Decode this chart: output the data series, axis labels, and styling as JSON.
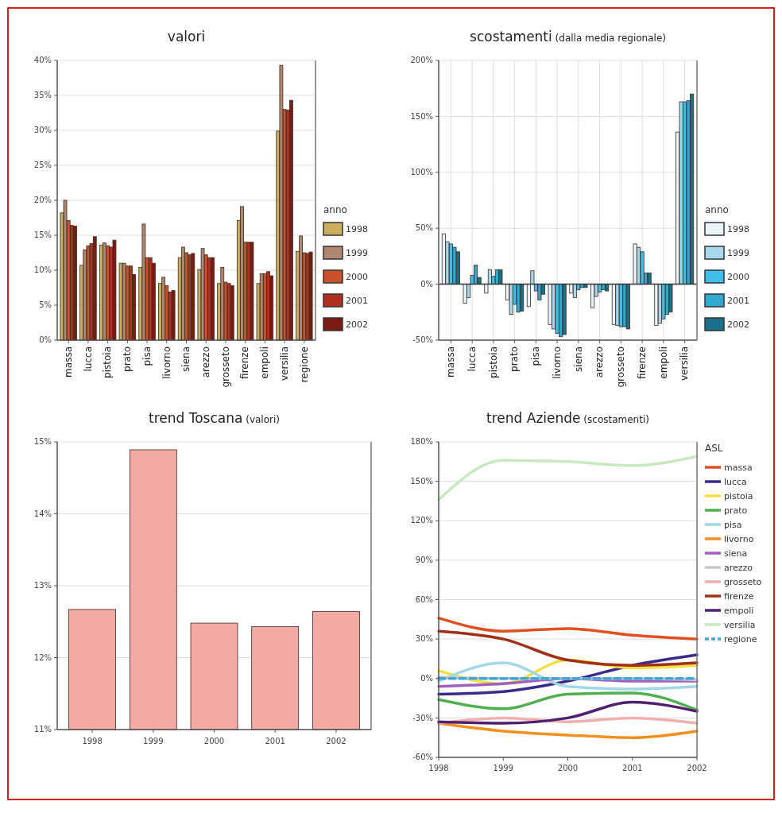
{
  "chart_data": [
    {
      "type": "bar",
      "title": "valori",
      "categories": [
        "massa",
        "lucca",
        "pistoia",
        "prato",
        "pisa",
        "livorno",
        "siena",
        "arezzo",
        "grosseto",
        "firenze",
        "empoli",
        "versilia",
        "regione"
      ],
      "series": [
        {
          "name": "1998",
          "color": "#c8b060",
          "values": [
            18.2,
            10.7,
            13.6,
            11.0,
            10.4,
            8.1,
            11.8,
            10.1,
            8.1,
            17.1,
            8.1,
            29.9,
            12.7
          ]
        },
        {
          "name": "1999",
          "color": "#b08870",
          "values": [
            20.0,
            12.9,
            13.9,
            11.0,
            16.6,
            9.0,
            13.3,
            13.1,
            10.4,
            19.1,
            9.5,
            39.3,
            14.9
          ]
        },
        {
          "name": "2000",
          "color": "#c8502a",
          "values": [
            17.1,
            13.5,
            13.5,
            10.6,
            11.8,
            7.8,
            12.5,
            12.2,
            8.3,
            14.0,
            9.5,
            33.0,
            12.5
          ]
        },
        {
          "name": "2001",
          "color": "#b03020",
          "values": [
            16.4,
            13.8,
            13.3,
            10.6,
            11.8,
            6.9,
            12.2,
            11.8,
            8.1,
            14.0,
            9.8,
            32.9,
            12.4
          ]
        },
        {
          "name": "2002",
          "color": "#7a1c12",
          "values": [
            16.3,
            14.8,
            14.3,
            9.4,
            11.0,
            7.1,
            12.4,
            11.8,
            7.8,
            14.0,
            9.2,
            34.3,
            12.6
          ]
        }
      ],
      "ylim": [
        0,
        40
      ],
      "yticks": [
        {
          "value": 0,
          "label": "0%"
        },
        {
          "value": 5,
          "label": "5%"
        },
        {
          "value": 10,
          "label": "10%"
        },
        {
          "value": 15,
          "label": "15%"
        },
        {
          "value": 20,
          "label": "20%"
        },
        {
          "value": 25,
          "label": "25%"
        },
        {
          "value": 30,
          "label": "30%"
        },
        {
          "value": 35,
          "label": "35%"
        },
        {
          "value": 40,
          "label": "40%"
        }
      ],
      "grid": "y",
      "legend": "bottom right",
      "legend_title": "anno"
    },
    {
      "type": "bar",
      "title": "scostamenti",
      "subtitle": "(dalla media regionale)",
      "categories": [
        "massa",
        "lucca",
        "pistoia",
        "prato",
        "pisa",
        "livorno",
        "siena",
        "arezzo",
        "grosseto",
        "firenze",
        "empoli",
        "versilia"
      ],
      "series": [
        {
          "name": "1998",
          "color": "#e8f4fa",
          "values": [
            45,
            -17,
            -8,
            -14,
            -20,
            -36,
            -8,
            -21,
            -36,
            36,
            -37,
            136
          ]
        },
        {
          "name": "1999",
          "color": "#a8d8ec",
          "values": [
            38,
            -12,
            13,
            -27,
            12,
            -40,
            -12,
            -11,
            -37,
            33,
            -35,
            163
          ]
        },
        {
          "name": "2000",
          "color": "#40c0e8",
          "values": [
            36,
            8,
            7,
            -18,
            -6,
            -44,
            -5,
            -7,
            -38,
            29,
            -31,
            163
          ]
        },
        {
          "name": "2001",
          "color": "#30a8d0",
          "values": [
            33,
            17,
            13,
            -25,
            -14,
            -47,
            -3,
            -5,
            -38,
            10,
            -27,
            164
          ]
        },
        {
          "name": "2002",
          "color": "#1a7088",
          "values": [
            29,
            6,
            13,
            -24,
            -9,
            -45,
            -3,
            -6,
            -40,
            10,
            -25,
            170
          ]
        }
      ],
      "ylim": [
        -50,
        200
      ],
      "yticks": [
        {
          "value": -50,
          "label": "-50%"
        },
        {
          "value": 0,
          "label": "0%"
        },
        {
          "value": 50,
          "label": "50%"
        },
        {
          "value": 100,
          "label": "100%"
        },
        {
          "value": 150,
          "label": "150%"
        },
        {
          "value": 200,
          "label": "200%"
        }
      ],
      "grid": true,
      "legend": "bottom right",
      "legend_title": "anno"
    },
    {
      "type": "bar",
      "title": "trend Toscana",
      "subtitle": "(valori)",
      "categories": [
        "1998",
        "1999",
        "2000",
        "2001",
        "2002"
      ],
      "color": "#f4aaa4",
      "values": [
        12.67,
        14.89,
        12.48,
        12.43,
        12.64
      ],
      "ylim": [
        11,
        15
      ],
      "yticks": [
        {
          "value": 11,
          "label": "11%"
        },
        {
          "value": 12,
          "label": "12%"
        },
        {
          "value": 13,
          "label": "13%"
        },
        {
          "value": 14,
          "label": "14%"
        },
        {
          "value": 15,
          "label": "15%"
        }
      ],
      "grid": "y"
    },
    {
      "type": "line",
      "title": "trend Aziende",
      "subtitle": "(scostamenti)",
      "x": [
        1998,
        1999,
        2000,
        2001,
        2002
      ],
      "series": [
        {
          "name": "massa",
          "color": "#e05020",
          "values": [
            46,
            36,
            38,
            33,
            30
          ]
        },
        {
          "name": "lucca",
          "color": "#3a2a8a",
          "values": [
            -12,
            -10,
            -2,
            10,
            18
          ]
        },
        {
          "name": "pistoia",
          "color": "#f0e040",
          "values": [
            6,
            -4,
            14,
            8,
            10
          ]
        },
        {
          "name": "prato",
          "color": "#50b050",
          "values": [
            -16,
            -23,
            -12,
            -11,
            -24
          ]
        },
        {
          "name": "pisa",
          "color": "#a0d8e8",
          "values": [
            -2,
            12,
            -6,
            -8,
            -6
          ]
        },
        {
          "name": "livorno",
          "color": "#f09020",
          "values": [
            -34,
            -40,
            -43,
            -45,
            -40
          ]
        },
        {
          "name": "siena",
          "color": "#a060c0",
          "values": [
            -6,
            -4,
            0,
            -2,
            -2
          ]
        },
        {
          "name": "arezzo",
          "color": "#c8c8c8",
          "values": [
            1,
            0,
            0,
            0,
            -1
          ]
        },
        {
          "name": "grosseto",
          "color": "#f0b0b0",
          "values": [
            -34,
            -30,
            -33,
            -30,
            -34
          ]
        },
        {
          "name": "firenze",
          "color": "#a03018",
          "values": [
            36,
            30,
            14,
            10,
            12
          ]
        },
        {
          "name": "empoli",
          "color": "#502070",
          "values": [
            -33,
            -34,
            -30,
            -18,
            -25
          ]
        },
        {
          "name": "versilia",
          "color": "#c8e8c0",
          "values": [
            136,
            166,
            165,
            162,
            169
          ]
        },
        {
          "name": "regione",
          "color": "#40a8d8",
          "values": [
            0,
            0,
            0,
            0,
            0
          ],
          "line_style": "dashed"
        }
      ],
      "xlim": [
        1998,
        2002
      ],
      "xticks": [
        1998,
        1999,
        2000,
        2001,
        2002
      ],
      "ylim": [
        -60,
        180
      ],
      "yticks": [
        {
          "value": -60,
          "label": "-60%"
        },
        {
          "value": -30,
          "label": "-30%"
        },
        {
          "value": 0,
          "label": "0%"
        },
        {
          "value": 30,
          "label": "30%"
        },
        {
          "value": 60,
          "label": "60%"
        },
        {
          "value": 90,
          "label": "90%"
        },
        {
          "value": 120,
          "label": "120%"
        },
        {
          "value": 150,
          "label": "150%"
        },
        {
          "value": 180,
          "label": "180%"
        }
      ],
      "grid": "y",
      "legend": "top right",
      "legend_title": "ASL"
    }
  ]
}
